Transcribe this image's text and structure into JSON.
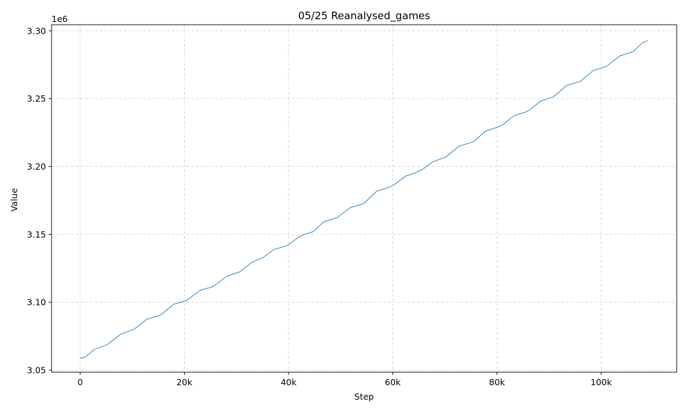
{
  "chart_data": {
    "type": "line",
    "title": "05/25  Reanalysed_games",
    "xlabel": "Step",
    "ylabel": "Value",
    "y_offset_label": "1e6",
    "xlim": [
      -5500,
      114500
    ],
    "ylim": [
      3.0485,
      3.3045
    ],
    "x_ticks": [
      0,
      20000,
      40000,
      60000,
      80000,
      100000
    ],
    "x_tick_labels": [
      "0",
      "20k",
      "40k",
      "60k",
      "80k",
      "100k"
    ],
    "y_ticks": [
      3.05,
      3.1,
      3.15,
      3.2,
      3.25,
      3.3
    ],
    "y_tick_labels": [
      "3.05",
      "3.10",
      "3.15",
      "3.20",
      "3.25",
      "3.30"
    ],
    "grid": true,
    "line_color": "#1f77b4",
    "series": [
      {
        "x": [
          0,
          500,
          1000,
          2700,
          5200,
          7800,
          10300,
          12800,
          15400,
          17900,
          20500,
          23000,
          25500,
          28100,
          30600,
          33100,
          35000,
          37200,
          39800,
          42300,
          44800,
          46700,
          49300,
          51800,
          54400,
          56900,
          59400,
          60300,
          62500,
          64400,
          65700,
          67600,
          70100,
          72700,
          75500,
          77800,
          80300,
          81200,
          83300,
          85800,
          88400,
          90900,
          93400,
          96000,
          98500,
          101000,
          103600,
          106100,
          108000,
          109000
        ],
        "y": [
          3.059,
          3.059,
          3.0598,
          3.0652,
          3.0688,
          3.0765,
          3.08,
          3.0875,
          3.0905,
          3.0984,
          3.1015,
          3.1088,
          3.1115,
          3.1191,
          3.1224,
          3.1297,
          3.1327,
          3.1389,
          3.1418,
          3.149,
          3.1522,
          3.1592,
          3.1623,
          3.1697,
          3.1727,
          3.1818,
          3.1848,
          3.1868,
          3.193,
          3.1955,
          3.1978,
          3.2034,
          3.2068,
          3.215,
          3.2183,
          3.2261,
          3.2293,
          3.231,
          3.2375,
          3.2405,
          3.2482,
          3.2515,
          3.2598,
          3.2628,
          3.2708,
          3.2738,
          3.2816,
          3.2846,
          3.2915,
          3.2928
        ]
      }
    ]
  }
}
